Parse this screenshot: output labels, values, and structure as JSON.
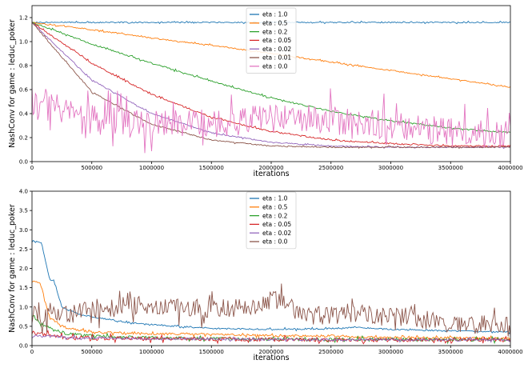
{
  "chart_data": [
    {
      "type": "line",
      "title": "",
      "xlabel": "iterations",
      "ylabel": "NashConv for game : leduc_poker",
      "xlim": [
        0,
        4000000
      ],
      "ylim": [
        0.0,
        1.3
      ],
      "xticks": [
        0,
        500000,
        1000000,
        1500000,
        2000000,
        2500000,
        3000000,
        3500000,
        4000000
      ],
      "yticks": [
        0.0,
        0.2,
        0.4,
        0.6,
        0.8,
        1.0,
        1.2
      ],
      "xtick_labels": [
        "0",
        "500000",
        "1000000",
        "1500000",
        "2000000",
        "2500000",
        "3000000",
        "3500000",
        "4000000"
      ],
      "ytick_labels": [
        "0.0",
        "0.2",
        "0.4",
        "0.6",
        "0.8",
        "1.0",
        "1.2"
      ],
      "grid": false,
      "legend_position": "top-center",
      "series": [
        {
          "name": "eta : 1.0",
          "color": "#1f77b4",
          "x": [
            0,
            500000,
            1000000,
            1500000,
            2000000,
            2500000,
            3000000,
            3500000,
            4000000
          ],
          "y": [
            1.16,
            1.16,
            1.16,
            1.16,
            1.16,
            1.16,
            1.16,
            1.16,
            1.16
          ],
          "noise": 0.005
        },
        {
          "name": "eta : 0.5",
          "color": "#ff7f0e",
          "x": [
            0,
            500000,
            1000000,
            1500000,
            2000000,
            2500000,
            3000000,
            3500000,
            4000000
          ],
          "y": [
            1.16,
            1.1,
            1.03,
            0.97,
            0.9,
            0.83,
            0.76,
            0.69,
            0.62
          ],
          "noise": 0.005
        },
        {
          "name": "eta : 0.2",
          "color": "#2ca02c",
          "x": [
            0,
            500000,
            1000000,
            1500000,
            2000000,
            2500000,
            3000000,
            3500000,
            4000000
          ],
          "y": [
            1.16,
            0.98,
            0.82,
            0.67,
            0.53,
            0.42,
            0.34,
            0.28,
            0.24
          ],
          "noise": 0.006
        },
        {
          "name": "eta : 0.05",
          "color": "#d62728",
          "x": [
            0,
            500000,
            1000000,
            1500000,
            2000000,
            2500000,
            3000000,
            3500000,
            4000000
          ],
          "y": [
            1.16,
            0.82,
            0.56,
            0.37,
            0.25,
            0.18,
            0.15,
            0.13,
            0.13
          ],
          "noise": 0.006
        },
        {
          "name": "eta : 0.02",
          "color": "#9467bd",
          "x": [
            0,
            500000,
            1000000,
            1500000,
            2000000,
            2500000,
            3000000,
            3500000,
            4000000
          ],
          "y": [
            1.16,
            0.68,
            0.4,
            0.24,
            0.16,
            0.13,
            0.12,
            0.12,
            0.12
          ],
          "noise": 0.005
        },
        {
          "name": "eta : 0.01",
          "color": "#8c564b",
          "x": [
            0,
            500000,
            1000000,
            1500000,
            2000000,
            2500000,
            3000000,
            3500000,
            4000000
          ],
          "y": [
            1.16,
            0.58,
            0.31,
            0.18,
            0.13,
            0.12,
            0.12,
            0.12,
            0.12
          ],
          "noise": 0.005
        },
        {
          "name": "eta : 0.0",
          "color": "#e377c2",
          "x": [
            0,
            500000,
            1000000,
            1500000,
            2000000,
            2500000,
            3000000,
            3500000,
            4000000
          ],
          "y": [
            0.5,
            0.35,
            0.3,
            0.32,
            0.36,
            0.35,
            0.3,
            0.25,
            0.22
          ],
          "noise": 0.12
        }
      ]
    },
    {
      "type": "line",
      "title": "",
      "xlabel": "iterations",
      "ylabel": "NashConv for game : leduc_poker",
      "xlim": [
        0,
        4000000
      ],
      "ylim": [
        0.0,
        4.0
      ],
      "xticks": [
        0,
        500000,
        1000000,
        1500000,
        2000000,
        2500000,
        3000000,
        3500000,
        4000000
      ],
      "yticks": [
        0.0,
        0.5,
        1.0,
        1.5,
        2.0,
        2.5,
        3.0,
        3.5,
        4.0
      ],
      "xtick_labels": [
        "0",
        "500000",
        "1000000",
        "1500000",
        "2000000",
        "2500000",
        "3000000",
        "3500000",
        "4000000"
      ],
      "ytick_labels": [
        "0.0",
        "0.5",
        "1.0",
        "1.5",
        "2.0",
        "2.5",
        "3.0",
        "3.5",
        "4.0"
      ],
      "grid": false,
      "legend_position": "top-center",
      "series": [
        {
          "name": "eta : 1.0",
          "color": "#1f77b4",
          "x": [
            0,
            60000,
            80000,
            150000,
            180000,
            250000,
            400000,
            600000,
            800000,
            1000000,
            1200000,
            1500000,
            2000000,
            2500000,
            2700000,
            3000000,
            3500000,
            4000000
          ],
          "y": [
            2.7,
            2.7,
            2.65,
            1.7,
            1.7,
            1.0,
            0.8,
            0.7,
            0.6,
            0.55,
            0.5,
            0.45,
            0.42,
            0.44,
            0.48,
            0.42,
            0.38,
            0.35
          ],
          "noise": 0.02
        },
        {
          "name": "eta : 0.5",
          "color": "#ff7f0e",
          "x": [
            0,
            60000,
            80000,
            150000,
            300000,
            500000,
            1000000,
            1500000,
            2000000,
            2500000,
            3000000,
            3500000,
            4000000
          ],
          "y": [
            1.7,
            1.65,
            1.5,
            0.7,
            0.45,
            0.35,
            0.3,
            0.3,
            0.25,
            0.25,
            0.2,
            0.2,
            0.18
          ],
          "noise": 0.03
        },
        {
          "name": "eta : 0.2",
          "color": "#2ca02c",
          "x": [
            0,
            100000,
            300000,
            500000,
            1000000,
            1500000,
            2000000,
            2500000,
            3000000,
            3500000,
            4000000
          ],
          "y": [
            0.8,
            0.5,
            0.3,
            0.25,
            0.2,
            0.18,
            0.17,
            0.16,
            0.16,
            0.15,
            0.15
          ],
          "noise": 0.04
        },
        {
          "name": "eta : 0.05",
          "color": "#d62728",
          "x": [
            0,
            100000,
            300000,
            500000,
            1000000,
            1500000,
            2000000,
            2500000,
            3000000,
            3500000,
            4000000
          ],
          "y": [
            0.35,
            0.3,
            0.22,
            0.2,
            0.18,
            0.17,
            0.16,
            0.15,
            0.15,
            0.15,
            0.15
          ],
          "noise": 0.05
        },
        {
          "name": "eta : 0.02",
          "color": "#9467bd",
          "x": [
            0,
            500000,
            1000000,
            1500000,
            2000000,
            2500000,
            3000000,
            3500000,
            4000000
          ],
          "y": [
            0.25,
            0.2,
            0.18,
            0.17,
            0.16,
            0.15,
            0.15,
            0.15,
            0.15
          ],
          "noise": 0.03
        },
        {
          "name": "eta : 0.0",
          "color": "#8c564b",
          "x": [
            0,
            250000,
            500000,
            800000,
            1100000,
            1400000,
            1800000,
            2050000,
            2300000,
            2700000,
            3000000,
            3500000,
            3950000,
            4000000
          ],
          "y": [
            0.8,
            0.75,
            0.95,
            1.05,
            1.0,
            0.95,
            1.0,
            1.2,
            0.75,
            0.85,
            0.8,
            0.55,
            0.55,
            0.4
          ],
          "noise": 0.25
        }
      ]
    }
  ]
}
